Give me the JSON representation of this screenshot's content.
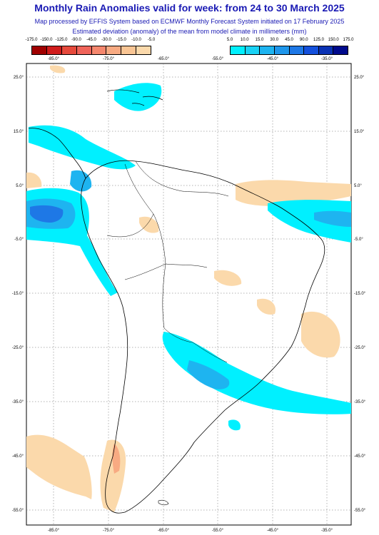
{
  "header": {
    "title": "Monthly Rain Anomalies valid for week: from 24 to 30 March 2025",
    "subtitle_1": "Map processed by EFFIS System based on ECMWF Monthly Forecast System initiated on 17 February 2025",
    "subtitle_2": "Estimated deviation (anomaly) of the mean from model climate in millimeters (mm)"
  },
  "legend": {
    "negative": {
      "labels": [
        "-175.0",
        "-150.0",
        "-125.0",
        "-90.0",
        "-45.0",
        "-30.0",
        "-15.0",
        "-10.0",
        "-5.0"
      ],
      "colors": [
        "#a00000",
        "#d01c1c",
        "#e64a3c",
        "#f0645a",
        "#f5876e",
        "#f8aa82",
        "#f9c594",
        "#fbd9ab"
      ]
    },
    "positive": {
      "labels": [
        "5.0",
        "10.0",
        "15.0",
        "30.0",
        "45.0",
        "90.0",
        "125.0",
        "150.0",
        "175.0"
      ],
      "colors": [
        "#00f0ff",
        "#19d2f5",
        "#1eb4f0",
        "#1e96eb",
        "#1e78e6",
        "#1450dc",
        "#0a32b4",
        "#000a8c"
      ]
    }
  },
  "axes": {
    "lon_labels": [
      "-85.0°",
      "-75.0°",
      "-65.0°",
      "-55.0°",
      "-45.0°",
      "-35.0°"
    ],
    "lat_labels": [
      "25.0°",
      "15.0°",
      "5.0°",
      "-5.0°",
      "-15.0°",
      "-25.0°",
      "-35.0°",
      "-45.0°",
      "-55.0°"
    ]
  },
  "map": {
    "colors": {
      "land_outline": "#000000",
      "grid": "#666666",
      "dry_light": "#fbd9ab",
      "dry_medium": "#f8aa82",
      "wet_light": "#00f0ff",
      "wet_medium": "#1eb4f0",
      "wet_strong": "#1e78e6"
    }
  }
}
